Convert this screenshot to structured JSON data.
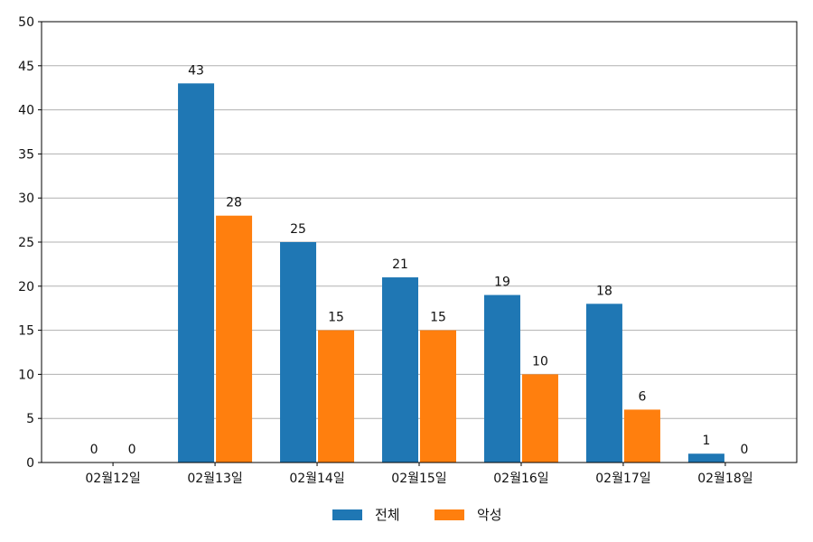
{
  "chart_data": {
    "type": "bar",
    "categories": [
      "02월12일",
      "02월13일",
      "02월14일",
      "02월15일",
      "02월16일",
      "02월17일",
      "02월18일"
    ],
    "series": [
      {
        "name": "전체",
        "values": [
          0,
          43,
          25,
          21,
          19,
          18,
          1
        ],
        "color": "#1f77b4"
      },
      {
        "name": "악성",
        "values": [
          0,
          28,
          15,
          15,
          10,
          6,
          0
        ],
        "color": "#ff7f0e"
      }
    ],
    "ylim": [
      0,
      50
    ],
    "yticks": [
      0,
      5,
      10,
      15,
      20,
      25,
      30,
      35,
      40,
      45,
      50
    ],
    "grid": "horizontal",
    "legend_position": "bottom-center",
    "show_data_labels": true
  }
}
